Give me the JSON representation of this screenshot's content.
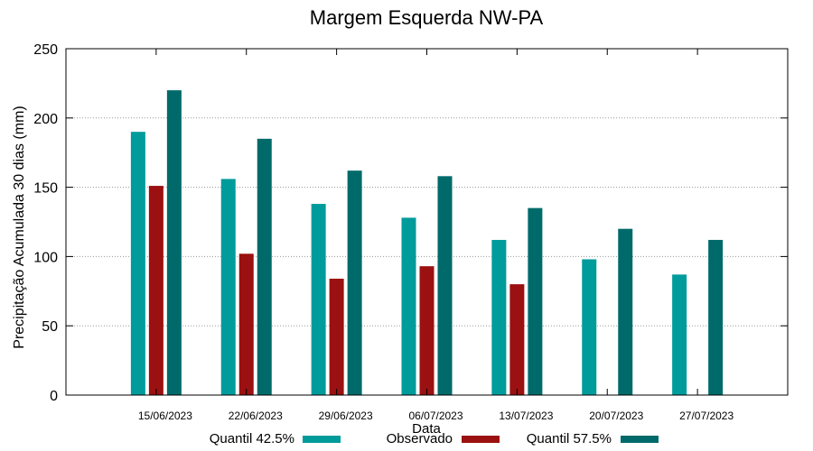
{
  "chart_data": {
    "type": "bar",
    "title": "Margem Esquerda NW-PA",
    "xlabel": "Data",
    "ylabel": "Precipitação Acumulada 30 dias (mm)",
    "ylim": [
      0,
      250
    ],
    "yticks": [
      0,
      50,
      100,
      150,
      200,
      250
    ],
    "grid": true,
    "legend_position": "bottom",
    "categories": [
      "15/06/2023",
      "22/06/2023",
      "29/06/2023",
      "06/07/2023",
      "13/07/2023",
      "20/07/2023",
      "27/07/2023"
    ],
    "series": [
      {
        "name": "Quantil 42.5%",
        "color": "#009b9b",
        "values": [
          190,
          156,
          138,
          128,
          112,
          98,
          87
        ]
      },
      {
        "name": "Observado",
        "color": "#9b1010",
        "values": [
          151,
          102,
          84,
          93,
          80,
          null,
          null
        ]
      },
      {
        "name": "Quantil 57.5%",
        "color": "#006a6a",
        "values": [
          220,
          185,
          162,
          158,
          135,
          120,
          112
        ]
      }
    ]
  }
}
